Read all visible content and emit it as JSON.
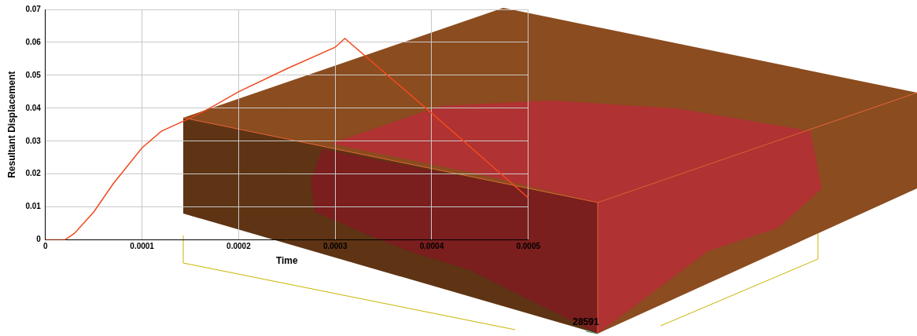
{
  "chart_data": {
    "type": "line",
    "x_label": "Time",
    "y_label": "Resultant Displacement",
    "annotations": [
      "28591"
    ],
    "x": [
      0,
      2e-05,
      3e-05,
      5e-05,
      7e-05,
      0.0001,
      0.00012,
      0.00015,
      0.00017,
      0.0002,
      0.00025,
      0.0003,
      0.00031,
      0.0004,
      0.0005
    ],
    "values": [
      0,
      0,
      0.002,
      0.0085,
      0.017,
      0.028,
      0.033,
      0.037,
      0.04,
      0.045,
      0.052,
      0.0585,
      0.0612,
      0.0385,
      0.0128
    ],
    "color": "#f04a1e",
    "xlim": [
      0,
      0.0005
    ],
    "xticks": [
      0,
      0.0001,
      0.0002,
      0.0003,
      0.0004,
      0.0005
    ],
    "ylim": [
      0,
      0.07
    ],
    "yticks": [
      0,
      0.01,
      0.02,
      0.03,
      0.04,
      0.05,
      0.06,
      0.07
    ],
    "grid": true
  }
}
